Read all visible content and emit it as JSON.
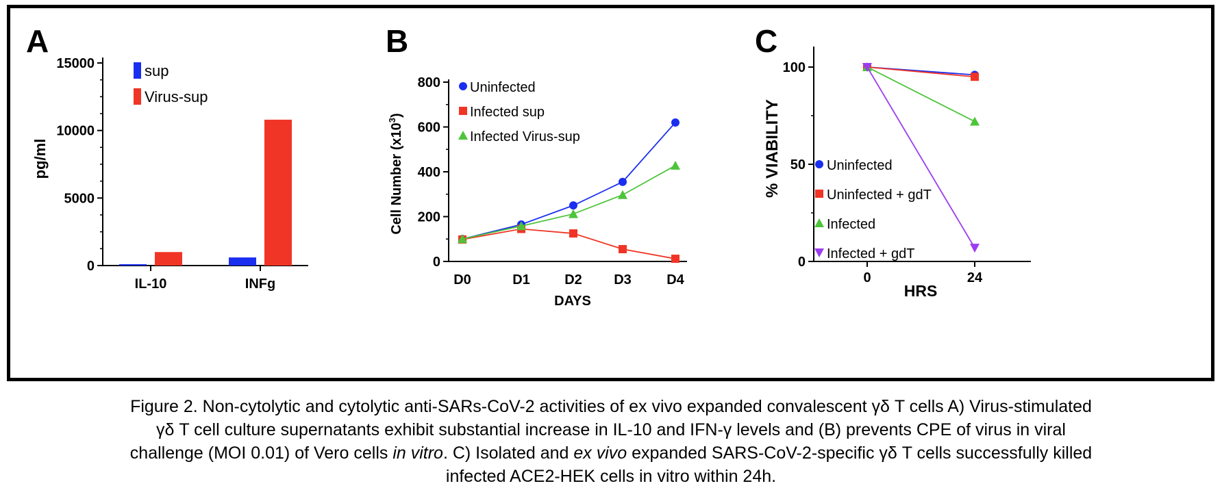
{
  "colors": {
    "blue": "#1a2ef0",
    "red": "#f03526",
    "green": "#4dc43a",
    "purple": "#9b3df0",
    "axis": "#000000"
  },
  "chart_data": [
    {
      "panel": "A",
      "type": "bar",
      "ylabel": "pg/ml",
      "xlabel": "",
      "ylim": [
        0,
        15000
      ],
      "yticks": [
        "0",
        "5000",
        "10000",
        "15000"
      ],
      "categories": [
        "IL-10",
        "INFg"
      ],
      "series": [
        {
          "name": "sup",
          "color": "#1a2ef0",
          "values": [
            100,
            600
          ]
        },
        {
          "name": "Virus-sup",
          "color": "#f03526",
          "values": [
            1000,
            10800
          ]
        }
      ],
      "legend": "top-left"
    },
    {
      "panel": "B",
      "type": "line",
      "xlabel": "DAYS",
      "ylabel_main": "Cell Number (x10",
      "ylabel_sup": "3",
      "ylabel_end": ")",
      "ylim": [
        0,
        800
      ],
      "yticks": [
        "0",
        "200",
        "400",
        "600",
        "800"
      ],
      "categories": [
        "D0",
        "D1",
        "D2",
        "D3",
        "D4"
      ],
      "series": [
        {
          "name": "Uninfected",
          "color": "#1a2ef0",
          "marker": "circle",
          "values": [
            100,
            165,
            250,
            355,
            620
          ]
        },
        {
          "name": "Infected sup",
          "color": "#f03526",
          "marker": "square",
          "values": [
            98,
            145,
            125,
            55,
            12
          ]
        },
        {
          "name": "Infected Virus-sup",
          "color": "#4dc43a",
          "marker": "triangle",
          "values": [
            100,
            158,
            212,
            297,
            428
          ]
        }
      ],
      "legend": "top-left"
    },
    {
      "panel": "C",
      "type": "line",
      "xlabel": "HRS",
      "ylabel": "% VIABILITY",
      "ylim": [
        0,
        110
      ],
      "yticks": [
        "0",
        "50",
        "100"
      ],
      "categories": [
        "0",
        "24"
      ],
      "series": [
        {
          "name": "Uninfected",
          "color": "#1a2ef0",
          "marker": "circle",
          "values": [
            100,
            96
          ]
        },
        {
          "name": "Uninfected + gdT",
          "color": "#f03526",
          "marker": "square",
          "values": [
            100,
            95
          ]
        },
        {
          "name": "Infected",
          "color": "#4dc43a",
          "marker": "triangle",
          "values": [
            100,
            72
          ]
        },
        {
          "name": "Infected + gdT",
          "color": "#9b3df0",
          "marker": "triangle-down",
          "values": [
            100,
            7
          ]
        }
      ],
      "legend": "left"
    }
  ],
  "caption": {
    "line1": "Figure 2. Non-cytolytic and cytolytic anti-SARs-CoV-2 activities of ex vivo expanded convalescent γδ T cells A) Virus-stimulated",
    "line2": "γδ T cell culture supernatants exhibit substantial increase in IL-10 and IFN-γ levels and (B) prevents CPE of virus in viral",
    "line3a": "challenge (MOI 0.01) of Vero cells ",
    "line3b": "in vitro",
    "line3c": ". C) Isolated and ",
    "line3d": "ex vivo",
    "line3e": " expanded SARS-CoV-2-specific γδ T cells successfully killed",
    "line4": "infected ACE2-HEK cells in vitro within 24h."
  }
}
